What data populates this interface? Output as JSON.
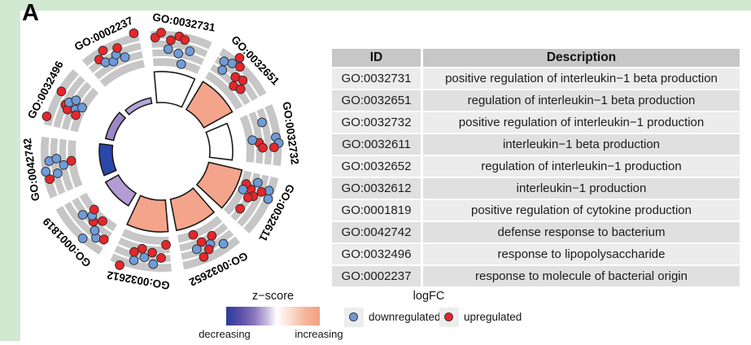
{
  "panel_label": "A",
  "frame_color": "#d0e9d0",
  "chart_data": {
    "type": "go_circle",
    "title": "",
    "legend_zscore": {
      "title": "z−score",
      "left_label": "decreasing",
      "right_label": "increasing",
      "gradient_colors": [
        "#2c3c9c",
        "#8a76bc",
        "#ffffff",
        "#f2a183"
      ]
    },
    "legend_logfc": {
      "title": "logFC",
      "items": [
        {
          "key": "d",
          "label": "downregulated",
          "color": "#6f9bd8"
        },
        {
          "key": "u",
          "label": "upregulated",
          "color": "#e8262a"
        }
      ]
    },
    "band_color": "#c6c6c6",
    "dot_colors": {
      "u": "#e8262a",
      "d": "#6f9bd8"
    },
    "geometry": {
      "center": [
        190,
        190
      ],
      "band_inner_radius": 105,
      "band_outer_radius": 148,
      "gridline_radii": [
        115.75,
        126.5,
        137.25
      ],
      "bar_base_radius": 60,
      "label_radius": 160,
      "dot_radius": 5.4,
      "sector_half_span_deg": 15,
      "sector_step_deg": 36,
      "first_sector_center_deg": 10
    },
    "sectors": [
      {
        "id": "GO:0032731",
        "bar": {
          "color": "#ffffff",
          "r": 98
        },
        "dots": [
          [
            -13,
            140,
            "u"
          ],
          [
            -10,
            146,
            "u"
          ],
          [
            -5,
            137,
            "u"
          ],
          [
            -1,
            143,
            "u"
          ],
          [
            2,
            140,
            "u"
          ],
          [
            -6,
            126,
            "d"
          ],
          [
            0,
            122,
            "d"
          ],
          [
            6,
            128,
            "d"
          ],
          [
            3,
            110,
            "d"
          ]
        ]
      },
      {
        "id": "GO:0032651",
        "bar": {
          "color": "#f4a48a",
          "r": 100
        },
        "dots": [
          [
            -6,
            150,
            "u"
          ],
          [
            -11,
            135,
            "d"
          ],
          [
            -7,
            139,
            "d"
          ],
          [
            -9,
            125,
            "d"
          ],
          [
            -3,
            142,
            "u"
          ],
          [
            -1,
            129,
            "u"
          ],
          [
            3,
            133,
            "u"
          ],
          [
            2,
            120,
            "u"
          ],
          [
            6,
            124,
            "u"
          ]
        ]
      },
      {
        "id": "GO:0032732",
        "bar": {
          "color": "#ffffff",
          "r": 88
        },
        "dots": [
          [
            -8,
            129,
            "d"
          ],
          [
            1,
            142,
            "d"
          ],
          [
            4,
            145,
            "d"
          ],
          [
            6,
            139,
            "u"
          ],
          [
            3,
            121,
            "u"
          ],
          [
            6,
            125,
            "u"
          ],
          [
            1,
            113,
            "d"
          ]
        ]
      },
      {
        "id": "GO:0032611",
        "bar": {
          "color": "#f4a48a",
          "r": 102
        },
        "dots": [
          [
            -8,
            141,
            "d"
          ],
          [
            -4,
            144,
            "d"
          ],
          [
            -6,
            133,
            "u"
          ],
          [
            -10,
            125,
            "d"
          ],
          [
            -5,
            120,
            "u"
          ],
          [
            -2,
            126,
            "u"
          ],
          [
            0,
            121,
            "u"
          ],
          [
            -7,
            112,
            "u"
          ],
          [
            -3,
            111,
            "d"
          ],
          [
            8,
            120,
            "u"
          ]
        ]
      },
      {
        "id": "GO:0032652",
        "bar": {
          "color": "#f4a48a",
          "r": 99
        },
        "dots": [
          [
            -8,
            137,
            "d"
          ],
          [
            -2,
            129,
            "d"
          ],
          [
            0,
            134,
            "u"
          ],
          [
            4,
            140,
            "u"
          ],
          [
            -5,
            121,
            "u"
          ],
          [
            2,
            122,
            "u"
          ],
          [
            6,
            128,
            "d"
          ],
          [
            5,
            110,
            "u"
          ]
        ]
      },
      {
        "id": "GO:0032612",
        "bar": {
          "color": "#f4a48a",
          "r": 99
        },
        "dots": [
          [
            -6,
            139,
            "d"
          ],
          [
            -10,
            131,
            "u"
          ],
          [
            -5,
            125,
            "u"
          ],
          [
            -1,
            132,
            "d"
          ],
          [
            1,
            122,
            "u"
          ],
          [
            4,
            138,
            "d"
          ],
          [
            5,
            128,
            "u"
          ],
          [
            -13,
            115,
            "u"
          ],
          [
            10,
            149,
            "u"
          ]
        ]
      },
      {
        "id": "GO:0001819",
        "bar": {
          "color": "#b39dd4",
          "r": 78
        },
        "dots": [
          [
            -4,
            144,
            "d"
          ],
          [
            -9,
            133,
            "d"
          ],
          [
            -13,
            129,
            "u"
          ],
          [
            -6,
            127,
            "d"
          ],
          [
            -2,
            120,
            "u"
          ],
          [
            -6,
            112,
            "u"
          ],
          [
            1,
            116,
            "d"
          ],
          [
            3,
            109,
            "u"
          ],
          [
            5,
            124,
            "d"
          ]
        ]
      },
      {
        "id": "GO:0042742",
        "bar": {
          "color": "#2b47a9",
          "r": 76
        },
        "dots": [
          [
            -6,
            141,
            "u"
          ],
          [
            -2,
            144,
            "d"
          ],
          [
            3,
            138,
            "d"
          ],
          [
            -4,
            130,
            "d"
          ],
          [
            4,
            129,
            "d"
          ],
          [
            0,
            121,
            "d"
          ],
          [
            2,
            111,
            "u"
          ]
        ]
      },
      {
        "id": "GO:0032496",
        "bar": {
          "color": "#9d87c8",
          "r": 70
        },
        "dots": [
          [
            -11,
            147,
            "u"
          ],
          [
            3,
            143,
            "u"
          ],
          [
            -2,
            131,
            "u"
          ],
          [
            -4,
            126,
            "u"
          ],
          [
            0,
            128,
            "d"
          ],
          [
            3,
            122,
            "d"
          ],
          [
            -2,
            117,
            "d"
          ],
          [
            1,
            111,
            "d"
          ],
          [
            -5,
            114,
            "u"
          ]
        ]
      },
      {
        "id": "GO:0002237",
        "bar": {
          "color": "#b5a6d8",
          "r": 67
        },
        "dots": [
          [
            13,
            149,
            "u"
          ],
          [
            -4,
            143,
            "u"
          ],
          [
            -8,
            136,
            "u"
          ],
          [
            -6,
            129,
            "d"
          ],
          [
            -2,
            125,
            "d"
          ],
          [
            1,
            131,
            "d"
          ],
          [
            3,
            138,
            "u"
          ],
          [
            5,
            124,
            "d"
          ]
        ]
      }
    ]
  },
  "table": {
    "headers": [
      "ID",
      "Description"
    ],
    "rows": [
      [
        "GO:0032731",
        "positive regulation of interleukin−1 beta production"
      ],
      [
        "GO:0032651",
        "regulation of interleukin−1 beta production"
      ],
      [
        "GO:0032732",
        "positive regulation of interleukin−1 production"
      ],
      [
        "GO:0032611",
        "interleukin−1 beta production"
      ],
      [
        "GO:0032652",
        "regulation of interleukin−1 production"
      ],
      [
        "GO:0032612",
        "interleukin−1 production"
      ],
      [
        "GO:0001819",
        "positive regulation of cytokine production"
      ],
      [
        "GO:0042742",
        "defense response to bacterium"
      ],
      [
        "GO:0032496",
        "response to lipopolysaccharide"
      ],
      [
        "GO:0002237",
        "response to molecule of bacterial origin"
      ]
    ]
  }
}
